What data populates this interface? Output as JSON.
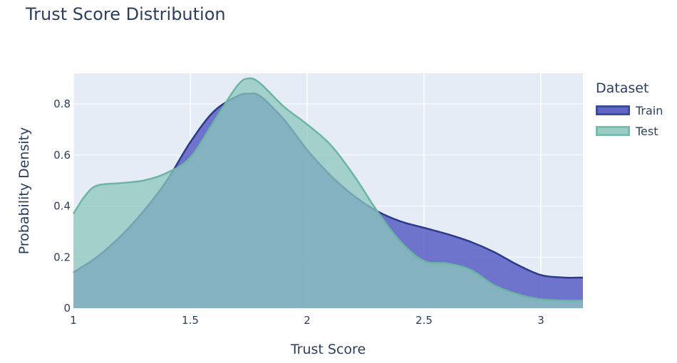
{
  "title": "Trust Score Distribution",
  "legend_title": "Dataset",
  "colors": {
    "plot_bg": "#e5ecf6",
    "grid": "#ffffff",
    "text": "#2a3f5f",
    "train_line": "#2a3a8c",
    "train_fill": "#5055c0",
    "test_line": "#6cb5a3",
    "test_fill": "#8ec7bd"
  },
  "chart_data": {
    "type": "area",
    "title": "Trust Score Distribution",
    "xlabel": "Trust Score",
    "ylabel": "Probability Density",
    "xlim": [
      1,
      3.18
    ],
    "ylim": [
      0,
      0.92
    ],
    "xticks": [
      "1",
      "1.5",
      "2",
      "2.5",
      "3"
    ],
    "yticks": [
      "0",
      "0.2",
      "0.4",
      "0.6",
      "0.8"
    ],
    "grid": true,
    "legend": "right",
    "series": [
      {
        "name": "Train",
        "x": [
          1.0,
          1.1,
          1.2,
          1.3,
          1.4,
          1.5,
          1.6,
          1.7,
          1.75,
          1.8,
          1.9,
          2.0,
          2.1,
          2.2,
          2.3,
          2.4,
          2.5,
          2.6,
          2.7,
          2.8,
          2.9,
          3.0,
          3.1,
          3.18
        ],
        "y": [
          0.14,
          0.2,
          0.28,
          0.38,
          0.5,
          0.65,
          0.77,
          0.83,
          0.84,
          0.83,
          0.74,
          0.62,
          0.52,
          0.44,
          0.38,
          0.34,
          0.315,
          0.29,
          0.26,
          0.22,
          0.17,
          0.13,
          0.12,
          0.12
        ]
      },
      {
        "name": "Test",
        "x": [
          1.0,
          1.05,
          1.1,
          1.2,
          1.3,
          1.4,
          1.5,
          1.6,
          1.7,
          1.75,
          1.8,
          1.9,
          2.0,
          2.1,
          2.2,
          2.3,
          2.4,
          2.5,
          2.6,
          2.7,
          2.8,
          2.9,
          3.0,
          3.1,
          3.18
        ],
        "y": [
          0.37,
          0.44,
          0.48,
          0.49,
          0.5,
          0.53,
          0.59,
          0.73,
          0.87,
          0.9,
          0.88,
          0.79,
          0.72,
          0.64,
          0.52,
          0.38,
          0.26,
          0.185,
          0.175,
          0.15,
          0.09,
          0.055,
          0.035,
          0.03,
          0.03
        ]
      }
    ]
  }
}
